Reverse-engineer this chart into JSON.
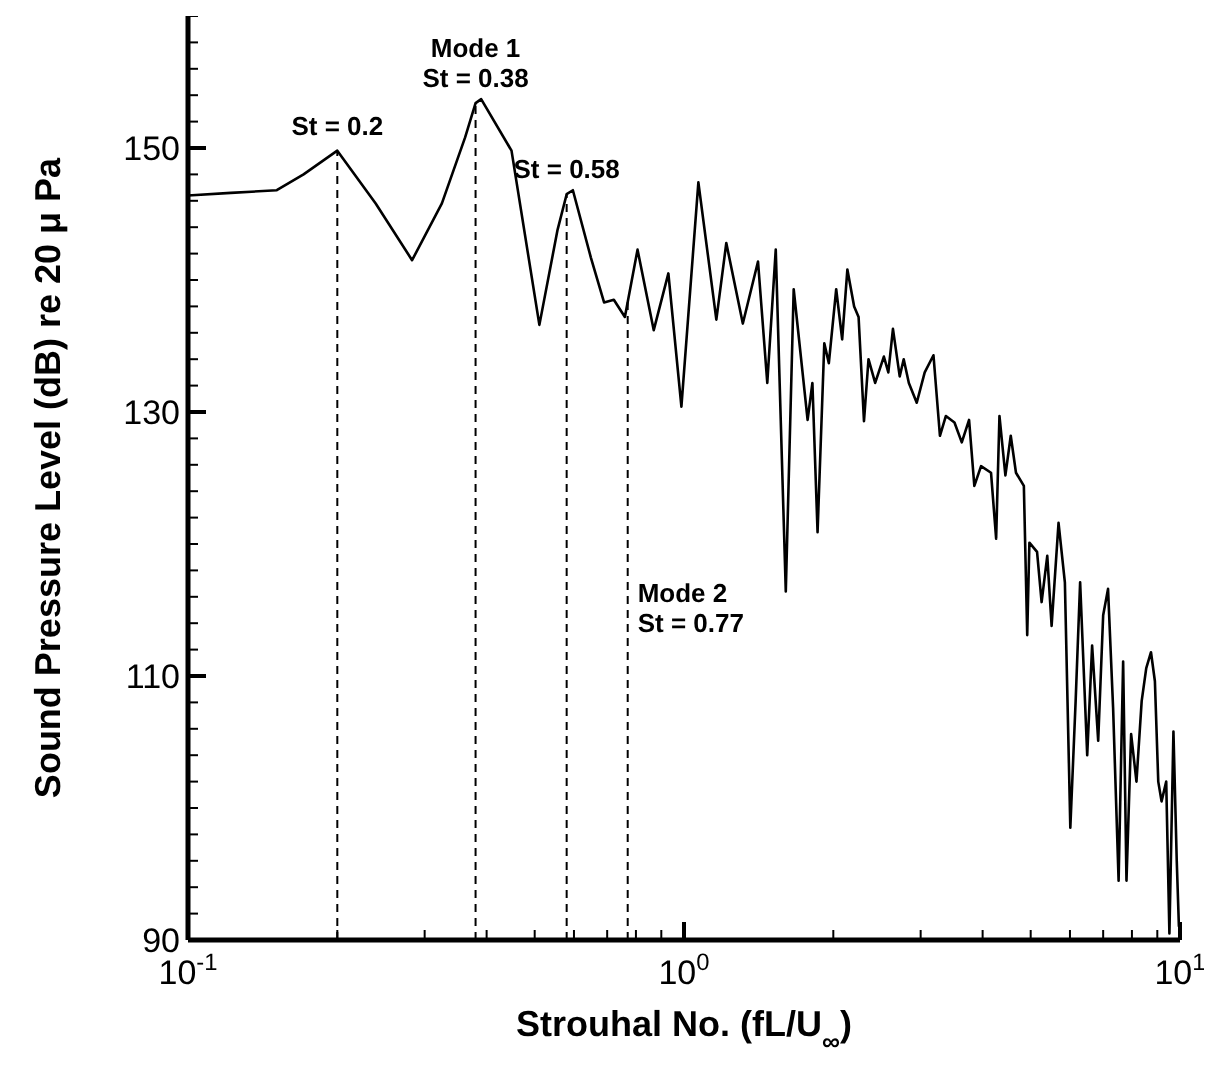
{
  "chart_data": {
    "type": "line",
    "xlabel": "Strouhal No. (fL/U$_{∞}$)",
    "ylabel": "Sound Pressure Level (dB) re 20 μ Pa",
    "log": "x",
    "marker": "none",
    "line_style": "solid",
    "xlim": [
      0.1,
      10
    ],
    "ylim": [
      90,
      160
    ],
    "xticks": [
      {
        "value": 0.1,
        "label": "10$^{-1}$"
      },
      {
        "value": 0.2,
        "label": null
      },
      {
        "value": 0.3,
        "label": null
      },
      {
        "value": 0.4,
        "label": null
      },
      {
        "value": 0.5,
        "label": null
      },
      {
        "value": 0.6,
        "label": null
      },
      {
        "value": 0.7,
        "label": null
      },
      {
        "value": 0.8,
        "label": null
      },
      {
        "value": 0.9,
        "label": null
      },
      {
        "value": 1,
        "label": "10$^{0}$"
      },
      {
        "value": 2,
        "label": null
      },
      {
        "value": 3,
        "label": null
      },
      {
        "value": 4,
        "label": null
      },
      {
        "value": 5,
        "label": null
      },
      {
        "value": 6,
        "label": null
      },
      {
        "value": 7,
        "label": null
      },
      {
        "value": 8,
        "label": null
      },
      {
        "value": 9,
        "label": null
      },
      {
        "value": 10,
        "label": "10$^{1}$"
      }
    ],
    "yticks": [
      90,
      {
        "value": 92,
        "label": null
      },
      {
        "value": 94,
        "label": null
      },
      {
        "value": 96,
        "label": null
      },
      {
        "value": 98,
        "label": null
      },
      {
        "value": 100,
        "label": null
      },
      {
        "value": 102,
        "label": null
      },
      {
        "value": 104,
        "label": null
      },
      {
        "value": 106,
        "label": null
      },
      {
        "value": 108,
        "label": null
      },
      110,
      {
        "value": 112,
        "label": null
      },
      {
        "value": 114,
        "label": null
      },
      {
        "value": 116,
        "label": null
      },
      {
        "value": 118,
        "label": null
      },
      {
        "value": 120,
        "label": null
      },
      {
        "value": 122,
        "label": null
      },
      {
        "value": 124,
        "label": null
      },
      {
        "value": 126,
        "label": null
      },
      {
        "value": 128,
        "label": null
      },
      130,
      {
        "value": 132,
        "label": null
      },
      {
        "value": 134,
        "label": null
      },
      {
        "value": 136,
        "label": null
      },
      {
        "value": 138,
        "label": null
      },
      {
        "value": 140,
        "label": null
      },
      {
        "value": 142,
        "label": null
      },
      {
        "value": 144,
        "label": null
      },
      {
        "value": 146,
        "label": null
      },
      {
        "value": 148,
        "label": null
      },
      150,
      {
        "value": 152,
        "label": null
      },
      {
        "value": 154,
        "label": null
      },
      {
        "value": 156,
        "label": null
      },
      {
        "value": 158,
        "label": null
      },
      {
        "value": 160,
        "label": null
      }
    ],
    "series": [
      {
        "color": "#000000",
        "x": [
          0.1,
          0.122,
          0.151,
          0.171,
          0.2,
          0.239,
          0.283,
          0.325,
          0.362,
          0.38,
          0.39,
          0.449,
          0.511,
          0.556,
          0.58,
          0.597,
          0.649,
          0.69,
          0.722,
          0.76,
          0.806,
          0.869,
          0.93,
          0.988,
          1.069,
          1.162,
          1.217,
          1.314,
          1.41,
          1.472,
          1.531,
          1.604,
          1.664,
          1.775,
          1.815,
          1.859,
          1.918,
          1.959,
          2.027,
          2.084,
          2.135,
          2.203,
          2.249,
          2.306,
          2.355,
          2.429,
          2.529,
          2.582,
          2.638,
          2.722,
          2.773,
          2.84,
          2.946,
          3.057,
          3.184,
          3.281,
          3.373,
          3.51,
          3.631,
          3.756,
          3.849,
          3.971,
          4.159,
          4.259,
          4.325,
          4.446,
          4.558,
          4.67,
          4.844,
          4.92,
          4.97,
          5.15,
          5.26,
          5.4,
          5.51,
          5.69,
          5.86,
          6.01,
          6.16,
          6.29,
          6.5,
          6.65,
          6.84,
          7.0,
          7.16,
          7.33,
          7.52,
          7.68,
          7.8,
          7.97,
          8.17,
          8.37,
          8.55,
          8.74,
          8.9,
          9.04,
          9.18,
          9.38,
          9.52,
          9.7,
          9.85,
          9.95
        ],
        "values": [
          146.4,
          146.6,
          146.8,
          148.0,
          149.8,
          145.8,
          141.5,
          145.8,
          150.8,
          153.4,
          153.7,
          149.8,
          136.6,
          143.8,
          146.5,
          146.8,
          141.7,
          138.3,
          138.5,
          137.2,
          142.3,
          136.2,
          140.5,
          130.4,
          147.4,
          137.0,
          142.8,
          136.7,
          141.4,
          132.2,
          142.3,
          116.4,
          139.3,
          129.4,
          132.2,
          120.9,
          135.2,
          133.7,
          139.3,
          135.5,
          140.8,
          138.0,
          137.2,
          129.3,
          134.0,
          132.2,
          134.2,
          133.0,
          136.3,
          132.7,
          134.0,
          132.2,
          130.7,
          133.0,
          134.3,
          128.2,
          129.7,
          129.2,
          127.7,
          129.4,
          124.4,
          125.9,
          125.4,
          120.4,
          129.7,
          125.2,
          128.2,
          125.4,
          124.4,
          113.1,
          120.1,
          119.4,
          115.6,
          119.1,
          113.8,
          121.6,
          117.1,
          98.5,
          108.1,
          117.1,
          104.0,
          112.3,
          105.1,
          114.6,
          116.6,
          107.6,
          94.5,
          111.1,
          94.5,
          105.6,
          102.0,
          108.1,
          110.6,
          111.8,
          109.6,
          102.0,
          100.5,
          102.0,
          90.5,
          105.8,
          96.0,
          91.0
        ]
      }
    ],
    "ref_lines": [
      {
        "axis": "x",
        "value": 0.2,
        "color": "#000000",
        "line_style": "dashed"
      },
      {
        "axis": "x",
        "value": 0.38,
        "color": "#000000",
        "line_style": "dashed"
      },
      {
        "axis": "x",
        "value": 0.58,
        "color": "#000000",
        "line_style": "dashed"
      },
      {
        "axis": "x",
        "value": 0.77,
        "color": "#000000",
        "line_style": "dashed"
      }
    ],
    "annotations": [
      {
        "text": "St = 0.2",
        "x": 0.2,
        "y": 149.8
      },
      {
        "text": "Mode 1\nSt = 0.38",
        "x": 0.38,
        "y": 153.4
      },
      {
        "text": "St = 0.58",
        "x": 0.58,
        "y": 146.5
      },
      {
        "text": "Mode 2\nSt = 0.77",
        "x": 0.77,
        "y": 113.3
      }
    ]
  }
}
